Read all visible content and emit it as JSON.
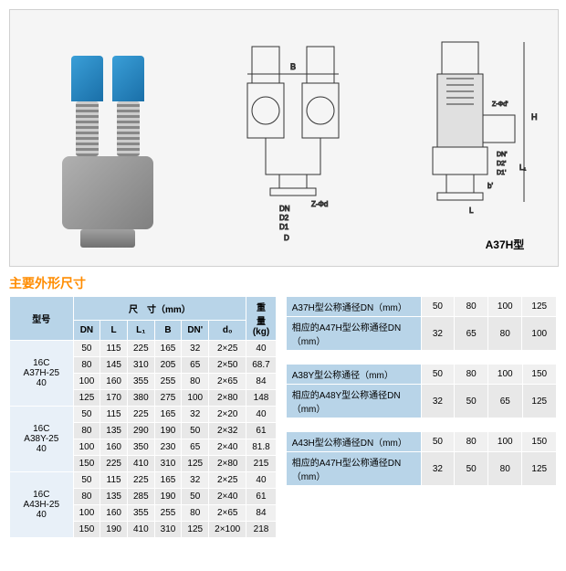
{
  "diagram_label": "A37H型",
  "section_title": "主要外形尺寸",
  "main_table": {
    "header_group": "尺　寸（mm）",
    "headers": [
      "型号",
      "DN",
      "L",
      "L₁",
      "B",
      "DN'",
      "d₀",
      "重量(kg)"
    ],
    "groups": [
      {
        "model": "16C\nA37H-25\n40",
        "rows": [
          [
            "50",
            "115",
            "225",
            "165",
            "32",
            "2×25",
            "40"
          ],
          [
            "80",
            "145",
            "310",
            "205",
            "65",
            "2×50",
            "68.7"
          ],
          [
            "100",
            "160",
            "355",
            "255",
            "80",
            "2×65",
            "84"
          ],
          [
            "125",
            "170",
            "380",
            "275",
            "100",
            "2×80",
            "148"
          ]
        ]
      },
      {
        "model": "16C\nA38Y-25\n40",
        "rows": [
          [
            "50",
            "115",
            "225",
            "165",
            "32",
            "2×20",
            "40"
          ],
          [
            "80",
            "135",
            "290",
            "190",
            "50",
            "2×32",
            "61"
          ],
          [
            "100",
            "160",
            "350",
            "230",
            "65",
            "2×40",
            "81.8"
          ],
          [
            "150",
            "225",
            "410",
            "310",
            "125",
            "2×80",
            "215"
          ]
        ]
      },
      {
        "model": "16C\nA43H-25\n40",
        "rows": [
          [
            "50",
            "115",
            "225",
            "165",
            "32",
            "2×25",
            "40"
          ],
          [
            "80",
            "135",
            "285",
            "190",
            "50",
            "2×40",
            "61"
          ],
          [
            "100",
            "160",
            "355",
            "255",
            "80",
            "2×65",
            "84"
          ],
          [
            "150",
            "190",
            "410",
            "310",
            "125",
            "2×100",
            "218"
          ]
        ]
      }
    ]
  },
  "side_tables": [
    {
      "rows": [
        {
          "label": "A37H型公称通径DN（mm）",
          "vals": [
            "50",
            "80",
            "100",
            "125"
          ]
        },
        {
          "label": "相应的A47H型公称通径DN（mm）",
          "vals": [
            "32",
            "65",
            "80",
            "100"
          ]
        }
      ]
    },
    {
      "rows": [
        {
          "label": "A38Y型公称通径（mm）",
          "vals": [
            "50",
            "80",
            "100",
            "150"
          ]
        },
        {
          "label": "相应的A48Y型公称通径DN（mm）",
          "vals": [
            "32",
            "50",
            "65",
            "125"
          ]
        }
      ]
    },
    {
      "rows": [
        {
          "label": "A43H型公称通径DN（mm）",
          "vals": [
            "50",
            "80",
            "100",
            "150"
          ]
        },
        {
          "label": "相应的A47H型公称通径DN（mm）",
          "vals": [
            "32",
            "50",
            "80",
            "125"
          ]
        }
      ]
    }
  ],
  "colors": {
    "title": "#ff8c00",
    "header_bg": "#b8d4e8",
    "row_bg": "#f0f0f0",
    "row_alt_bg": "#e8e8e8"
  }
}
